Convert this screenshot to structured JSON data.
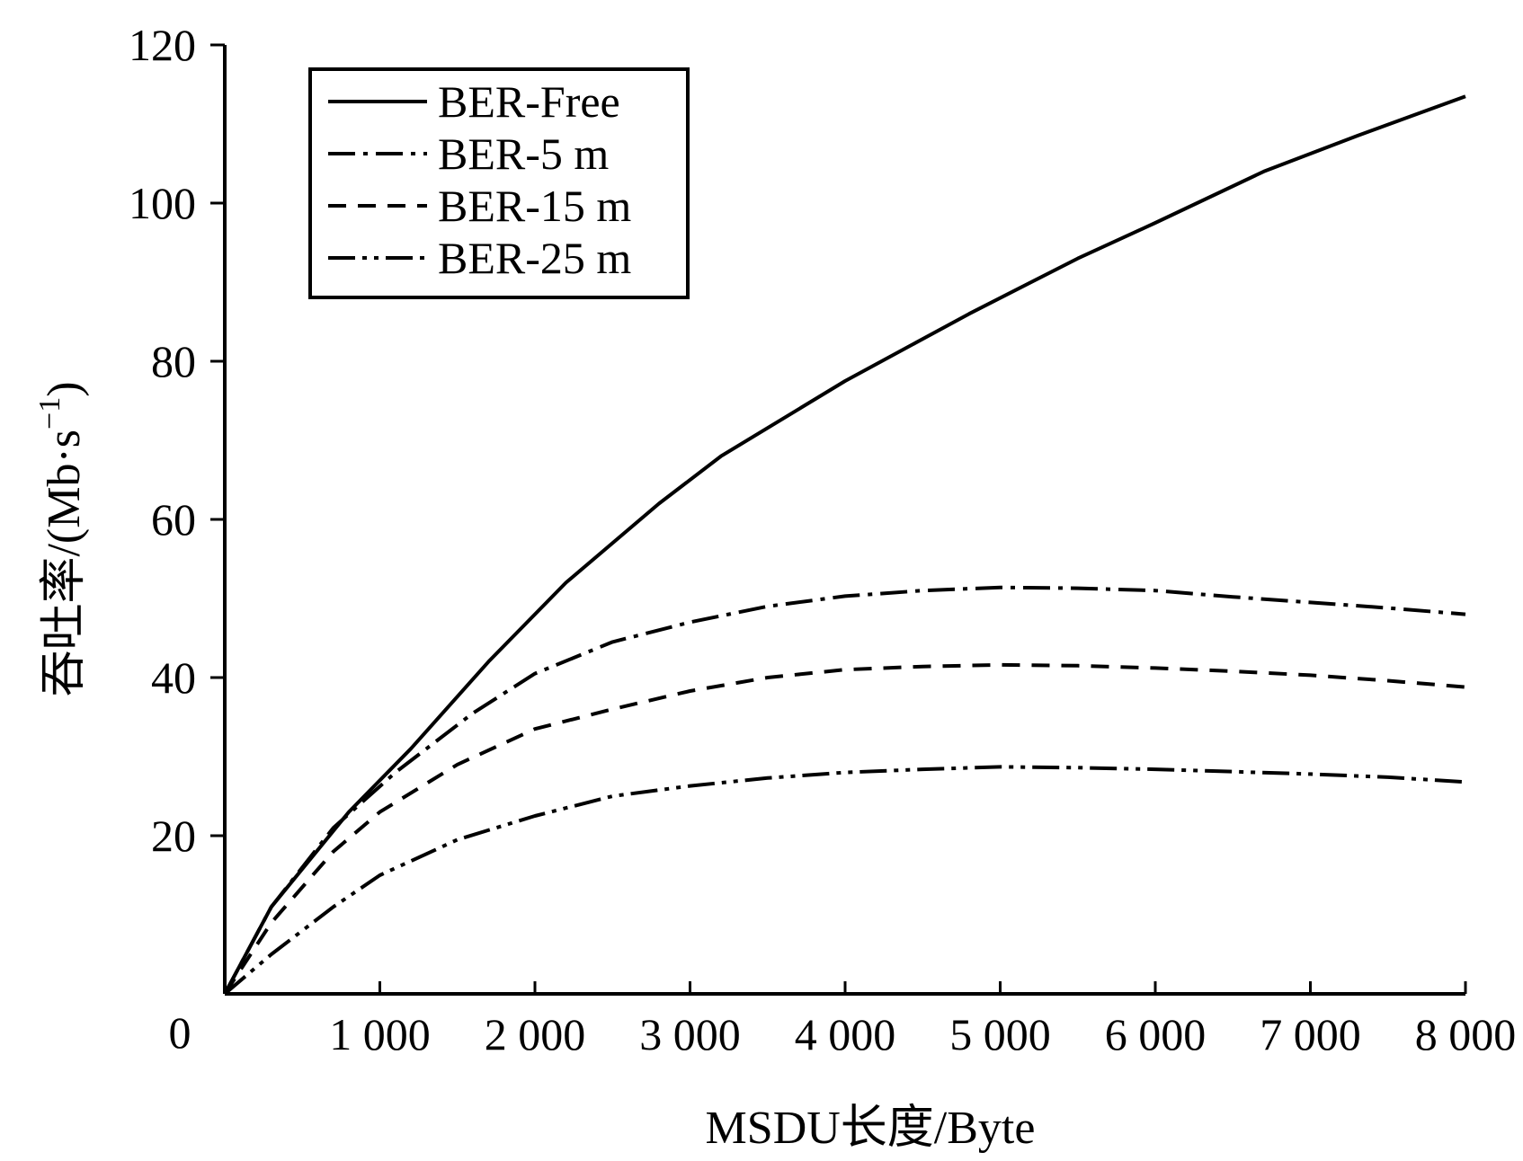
{
  "chart_data": {
    "type": "line",
    "xlabel": "MSDU长度/Byte",
    "ylabel": "吞吐率/(Mb·s",
    "ylabel_superscript": "−1",
    "ylabel_close": ")",
    "origin_label": "0",
    "xlim": [
      0,
      8000
    ],
    "ylim": [
      0,
      120
    ],
    "x_ticks": [
      1000,
      2000,
      3000,
      4000,
      5000,
      6000,
      7000,
      8000
    ],
    "x_tick_labels": [
      "1 000",
      "2 000",
      "3 000",
      "4 000",
      "5 000",
      "6 000",
      "7 000",
      "8 000"
    ],
    "y_ticks": [
      20,
      40,
      60,
      80,
      100,
      120
    ],
    "y_tick_labels": [
      "20",
      "40",
      "60",
      "80",
      "100",
      "120"
    ],
    "legend_position": "top-left",
    "grid": false,
    "series": [
      {
        "name": "BER-Free",
        "dash": "solid",
        "x": [
          0,
          300,
          800,
          1200,
          1700,
          2200,
          2800,
          3200,
          4000,
          4800,
          5500,
          6000,
          6700,
          7300,
          8000
        ],
        "y": [
          0,
          11,
          23,
          31,
          42,
          52,
          62,
          68,
          77.5,
          86,
          93,
          97.5,
          104,
          108.5,
          113.5
        ]
      },
      {
        "name": "BER-5 m",
        "dash": "dashdot",
        "x": [
          0,
          300,
          700,
          1100,
          1600,
          2000,
          2500,
          3000,
          3500,
          4000,
          4500,
          5000,
          5500,
          6000,
          6500,
          7000,
          7500,
          8000
        ],
        "y": [
          0,
          11,
          21,
          28,
          35.5,
          40.5,
          44.5,
          47,
          49,
          50.3,
          51,
          51.4,
          51.3,
          51,
          50.2,
          49.5,
          48.8,
          48
        ]
      },
      {
        "name": "BER-15 m",
        "dash": "dashed",
        "x": [
          0,
          300,
          700,
          1000,
          1500,
          2000,
          2500,
          3000,
          3500,
          4000,
          4500,
          5000,
          5500,
          6000,
          6500,
          7000,
          7500,
          8000
        ],
        "y": [
          0,
          9,
          18,
          23,
          29,
          33.5,
          36,
          38.3,
          40,
          41,
          41.4,
          41.6,
          41.5,
          41.2,
          40.8,
          40.3,
          39.6,
          38.8
        ]
      },
      {
        "name": "BER-25 m",
        "dash": "dashdotdot",
        "x": [
          0,
          300,
          700,
          1000,
          1500,
          2000,
          2500,
          3000,
          3500,
          4000,
          4500,
          5000,
          5500,
          6000,
          6500,
          7000,
          7500,
          8000
        ],
        "y": [
          0,
          5,
          11,
          15,
          19.5,
          22.5,
          25,
          26.3,
          27.3,
          28,
          28.4,
          28.7,
          28.6,
          28.4,
          28.1,
          27.8,
          27.4,
          26.8
        ]
      }
    ]
  }
}
